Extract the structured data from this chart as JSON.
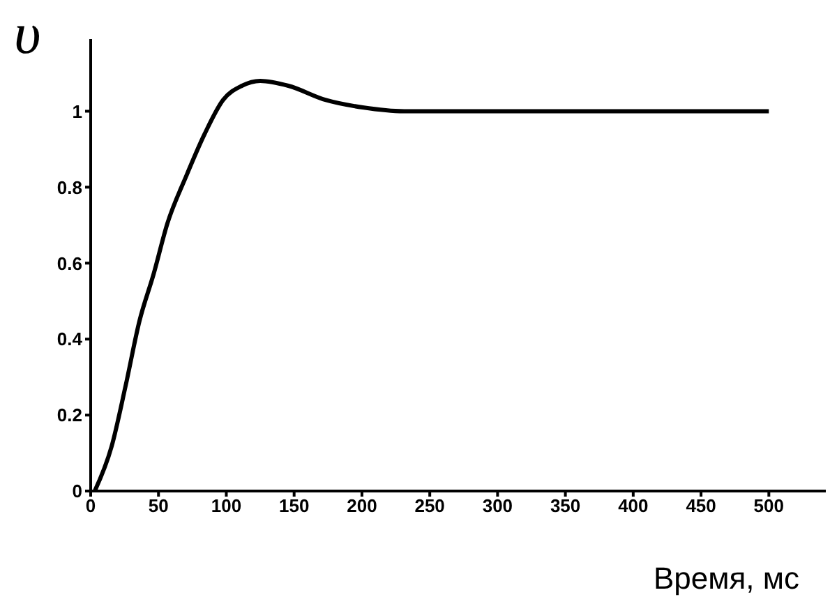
{
  "chart_data": {
    "type": "line",
    "xlabel": "Время, мс",
    "ylabel": "υ",
    "series": [
      {
        "color": "#000000",
        "x": [
          3,
          15.4,
          25.7,
          36,
          46.3,
          56.6,
          70.3,
          84,
          97.7,
          111.5,
          125,
          145.8,
          173,
          200.6,
          231,
          500
        ],
        "values": [
          0,
          0.117,
          0.276,
          0.448,
          0.57,
          0.705,
          0.828,
          0.94,
          1.03,
          1.067,
          1.08,
          1.067,
          1.03,
          1.01,
          1.0,
          1.0
        ]
      }
    ],
    "xlim": [
      0,
      542
    ],
    "xticks": [
      0,
      50,
      100,
      150,
      200,
      250,
      300,
      350,
      400,
      450,
      500
    ],
    "ylim": [
      0,
      1.19
    ],
    "yticks": [
      0,
      0.2,
      0.4,
      0.6,
      0.8,
      1
    ],
    "grid": false,
    "legend": false,
    "marker": "none",
    "line_style": "solid"
  }
}
